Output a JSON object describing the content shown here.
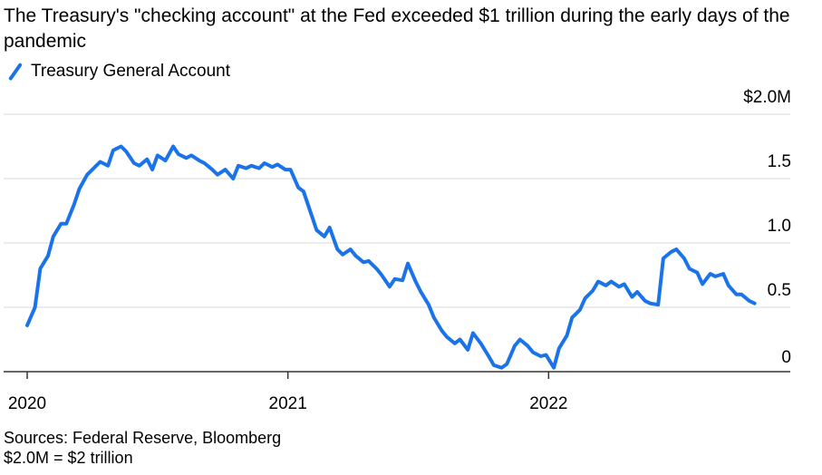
{
  "title": "The Treasury's \"checking account\" at the Fed exceeded $1 trillion during the early days of the pandemic",
  "legend_label": "Treasury General Account",
  "sources": "Sources: Federal Reserve, Bloomberg",
  "note": "$2.0M = $2 trillion",
  "colors": {
    "series": "#1a73e8",
    "grid": "#e6e6e6",
    "axis": "#333333"
  },
  "chart_data": {
    "type": "line",
    "title": "The Treasury's \"checking account\" at the Fed exceeded $1 trillion during the early days of the pandemic",
    "xlabel": "",
    "ylabel": "",
    "y_tick_labels": [
      "0",
      "0.5",
      "1.0",
      "1.5",
      "$2.0M"
    ],
    "y_ticks": [
      0,
      0.5,
      1.0,
      1.5,
      2.0
    ],
    "ylim": [
      0,
      2.0
    ],
    "x_tick_labels": [
      "2020",
      "2021",
      "2022"
    ],
    "x_ticks": [
      2020.0,
      2021.0,
      2022.0
    ],
    "xlim": [
      2020.0,
      2023.0
    ],
    "series": [
      {
        "name": "Treasury General Account",
        "x": [
          2020.0,
          2020.03,
          2020.05,
          2020.08,
          2020.1,
          2020.13,
          2020.15,
          2020.18,
          2020.2,
          2020.23,
          2020.25,
          2020.28,
          2020.31,
          2020.33,
          2020.36,
          2020.38,
          2020.41,
          2020.43,
          2020.46,
          2020.48,
          2020.5,
          2020.53,
          2020.56,
          2020.58,
          2020.61,
          2020.63,
          2020.66,
          2020.68,
          2020.71,
          2020.73,
          2020.76,
          2020.79,
          2020.81,
          2020.84,
          2020.86,
          2020.89,
          2020.91,
          2020.94,
          2020.96,
          2020.99,
          2021.01,
          2021.04,
          2021.06,
          2021.09,
          2021.11,
          2021.14,
          2021.16,
          2021.19,
          2021.21,
          2021.24,
          2021.26,
          2021.29,
          2021.31,
          2021.34,
          2021.36,
          2021.39,
          2021.41,
          2021.44,
          2021.46,
          2021.49,
          2021.51,
          2021.54,
          2021.56,
          2021.59,
          2021.61,
          2021.64,
          2021.66,
          2021.69,
          2021.71,
          2021.74,
          2021.77,
          2021.79,
          2021.82,
          2021.84,
          2021.87,
          2021.89,
          2021.92,
          2021.94,
          2021.97,
          2021.99,
          2022.02,
          2022.04,
          2022.07,
          2022.09,
          2022.12,
          2022.14,
          2022.17,
          2022.19,
          2022.22,
          2022.24,
          2022.27,
          2022.29,
          2022.32,
          2022.34,
          2022.37,
          2022.39,
          2022.42,
          2022.44,
          2022.47,
          2022.49,
          2022.52,
          2022.54,
          2022.57,
          2022.59,
          2022.62,
          2022.64,
          2022.67,
          2022.69,
          2022.72,
          2022.74,
          2022.77,
          2022.79
        ],
        "values": [
          0.36,
          0.5,
          0.8,
          0.9,
          1.05,
          1.15,
          1.15,
          1.3,
          1.42,
          1.53,
          1.57,
          1.63,
          1.6,
          1.72,
          1.75,
          1.71,
          1.62,
          1.6,
          1.65,
          1.57,
          1.68,
          1.64,
          1.75,
          1.69,
          1.66,
          1.68,
          1.64,
          1.62,
          1.57,
          1.53,
          1.57,
          1.5,
          1.6,
          1.58,
          1.6,
          1.58,
          1.62,
          1.59,
          1.61,
          1.57,
          1.57,
          1.43,
          1.4,
          1.22,
          1.1,
          1.05,
          1.12,
          0.95,
          0.91,
          0.95,
          0.9,
          0.85,
          0.86,
          0.8,
          0.75,
          0.66,
          0.72,
          0.71,
          0.84,
          0.7,
          0.62,
          0.52,
          0.42,
          0.32,
          0.27,
          0.22,
          0.25,
          0.17,
          0.3,
          0.22,
          0.12,
          0.05,
          0.03,
          0.06,
          0.2,
          0.25,
          0.2,
          0.15,
          0.12,
          0.13,
          0.03,
          0.18,
          0.28,
          0.42,
          0.48,
          0.57,
          0.63,
          0.7,
          0.67,
          0.7,
          0.66,
          0.68,
          0.58,
          0.62,
          0.55,
          0.53,
          0.52,
          0.88,
          0.93,
          0.95,
          0.88,
          0.8,
          0.77,
          0.68,
          0.76,
          0.74,
          0.76,
          0.67,
          0.6,
          0.6,
          0.55,
          0.53
        ]
      }
    ]
  }
}
